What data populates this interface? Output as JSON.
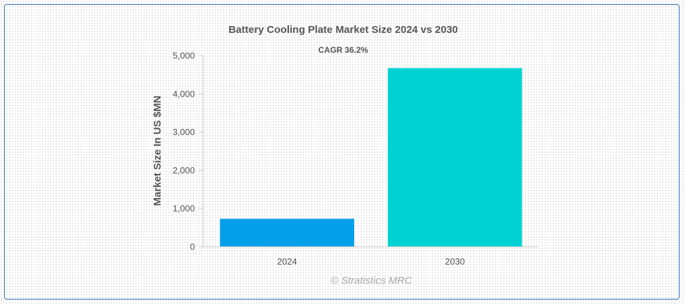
{
  "chart_data": {
    "type": "bar",
    "title": "Battery Cooling Plate Market Size 2024 vs 2030",
    "subtitle": "CAGR 36.2%",
    "ylabel": "Market Size In US $MN",
    "xlabel": "",
    "categories": [
      "2024",
      "2030"
    ],
    "values": [
      730,
      4670
    ],
    "bar_colors": [
      "#039fe9",
      "#00d2d3"
    ],
    "ylim": [
      0,
      5000
    ],
    "yticks": [
      0,
      1000,
      2000,
      3000,
      4000,
      5000
    ],
    "ytick_labels": [
      "0",
      "1,000",
      "2,000",
      "3,000",
      "4,000",
      "5,000"
    ],
    "grid": false,
    "legend": "none"
  },
  "credit": "© Stratistics MRC",
  "colors": {
    "frame_border": "#2f6fb6",
    "text": "#555555",
    "credit": "#a8a8a8",
    "axis": "#cccccc"
  }
}
